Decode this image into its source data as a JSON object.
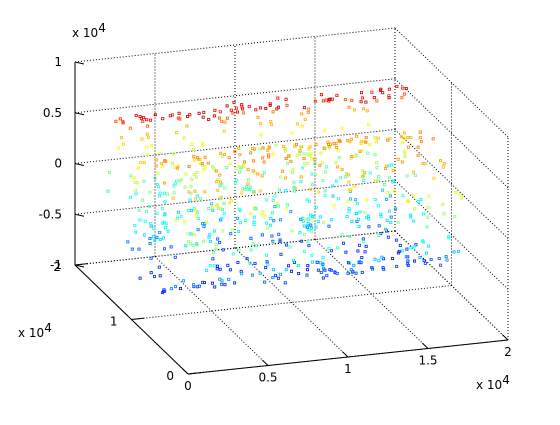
{
  "chart_data": {
    "type": "scatter",
    "title": "",
    "grid": true,
    "view": "3d-perspective",
    "colormap": "jet",
    "xlim": [
      0,
      20000
    ],
    "ylim": [
      0,
      20000
    ],
    "zlim": [
      -10000,
      10000
    ],
    "x_ticks": [
      "0",
      "0.5",
      "1",
      "1.5",
      "2"
    ],
    "y_ticks": [
      "0",
      "1",
      "2"
    ],
    "z_ticks": [
      "-1",
      "-0.5",
      "0",
      "0.5",
      "1"
    ],
    "x_exponent_base": "x 10",
    "x_exponent_power": "4",
    "y_exponent_base": "x 10",
    "y_exponent_power": "4",
    "z_exponent_base": "x 10",
    "z_exponent_power": "4",
    "shape": "swiss-roll",
    "point_count": 800,
    "sampled_points_xyz": [
      [
        1000,
        12000,
        -9000
      ],
      [
        3000,
        11000,
        -8500
      ],
      [
        6000,
        10000,
        -8000
      ],
      [
        9000,
        9000,
        -7500
      ],
      [
        12000,
        8000,
        -7000
      ],
      [
        15000,
        6000,
        -6500
      ],
      [
        18000,
        4000,
        -6000
      ],
      [
        2000,
        13000,
        -5000
      ],
      [
        5000,
        12500,
        -4500
      ],
      [
        9000,
        12000,
        -4000
      ],
      [
        13000,
        11000,
        -3500
      ],
      [
        17000,
        9000,
        -3000
      ],
      [
        1500,
        15000,
        0
      ],
      [
        5000,
        15000,
        500
      ],
      [
        9000,
        15000,
        1000
      ],
      [
        13000,
        14000,
        1500
      ],
      [
        17000,
        13000,
        2000
      ],
      [
        2000,
        17000,
        5000
      ],
      [
        6000,
        17500,
        5500
      ],
      [
        10000,
        17500,
        6000
      ],
      [
        14000,
        17000,
        6500
      ],
      [
        18000,
        16000,
        7000
      ]
    ]
  }
}
